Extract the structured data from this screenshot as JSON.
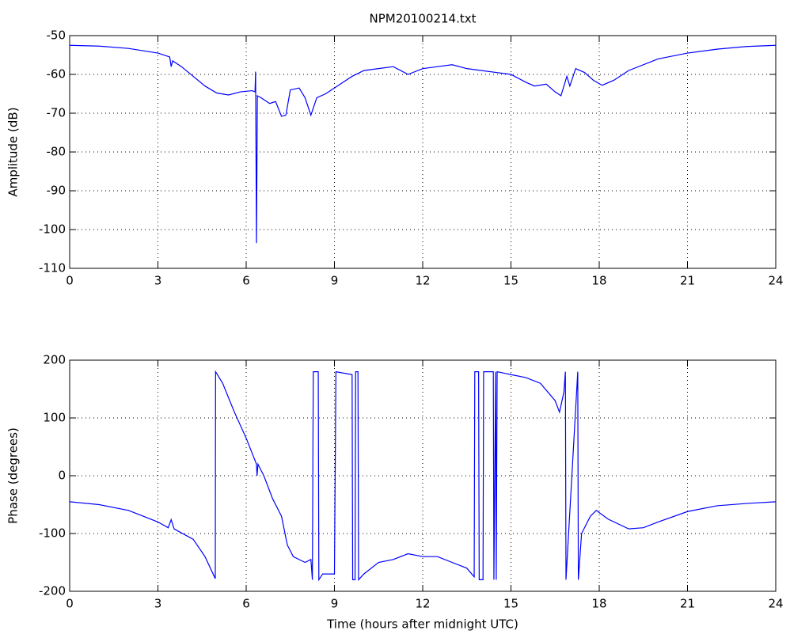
{
  "chart_data": [
    {
      "type": "line",
      "title": "NPM20100214.txt",
      "y_label": "Amplitude (dB)",
      "color": "#0000ff",
      "grid": true,
      "x": [
        0,
        1,
        2,
        3,
        3.4,
        3.45,
        3.5,
        3.8,
        4.2,
        4.6,
        5,
        5.4,
        5.8,
        6.2,
        6.3,
        6.32,
        6.35,
        6.38,
        6.5,
        6.8,
        7,
        7.2,
        7.35,
        7.5,
        7.8,
        8,
        8.2,
        8.4,
        8.7,
        9,
        9.3,
        9.6,
        10,
        10.5,
        11,
        11.5,
        12,
        12.5,
        13,
        13.5,
        14,
        14.5,
        15,
        15.5,
        15.8,
        16.2,
        16.5,
        16.7,
        16.9,
        17,
        17.2,
        17.5,
        17.8,
        18.1,
        18.5,
        19,
        20,
        21,
        22,
        23,
        24
      ],
      "values": [
        -52.5,
        -52.7,
        -53.3,
        -54.5,
        -55.5,
        -58,
        -56.5,
        -58,
        -60.5,
        -63,
        -64.8,
        -65.3,
        -64.5,
        -64.2,
        -64.5,
        -59.3,
        -103.5,
        -65.5,
        -66,
        -67.5,
        -67,
        -70.8,
        -70.5,
        -64,
        -63.5,
        -66,
        -70.5,
        -66,
        -65,
        -63.5,
        -62,
        -60.5,
        -59,
        -58.5,
        -58,
        -60,
        -58.5,
        -58,
        -57.5,
        -58.5,
        -59,
        -59.5,
        -60,
        -62,
        -63,
        -62.5,
        -64.5,
        -65.5,
        -60.5,
        -63,
        -58.5,
        -59.5,
        -61.5,
        -62.8,
        -61.5,
        -59,
        -56,
        -54.5,
        -53.5,
        -52.8,
        -52.5
      ],
      "xlim": [
        0,
        24
      ],
      "xticks": [
        0,
        3,
        6,
        9,
        12,
        15,
        18,
        21,
        24
      ],
      "ylim": [
        -110,
        -50
      ],
      "yticks": [
        -110,
        -100,
        -90,
        -80,
        -70,
        -60,
        -50
      ]
    },
    {
      "type": "line",
      "x_label": "Time (hours after midnight UTC)",
      "y_label": "Phase (degrees)",
      "color": "#0000ff",
      "grid": true,
      "x": [
        0,
        1,
        2,
        3,
        3.35,
        3.45,
        3.55,
        4.2,
        4.6,
        4.95,
        4.96,
        5.2,
        5.6,
        6,
        6.35,
        6.37,
        6.4,
        6.6,
        6.9,
        7.2,
        7.4,
        7.6,
        8,
        8.2,
        8.25,
        8.28,
        8.45,
        8.47,
        8.6,
        9,
        9.05,
        9.6,
        9.62,
        9.7,
        9.72,
        9.8,
        9.82,
        10,
        10.5,
        11,
        11.5,
        12,
        12.5,
        13,
        13.5,
        13.75,
        13.77,
        13.9,
        13.92,
        14.05,
        14.07,
        14.4,
        14.42,
        14.48,
        14.5,
        14.53,
        15,
        15.5,
        16,
        16.5,
        16.65,
        16.8,
        16.85,
        16.87,
        17.27,
        17.29,
        17.4,
        17.7,
        17.9,
        18.3,
        19,
        19.5,
        20,
        21,
        22,
        23,
        24
      ],
      "values": [
        -45,
        -50,
        -60,
        -80,
        -90,
        -76,
        -92,
        -110,
        -140,
        -178,
        180,
        160,
        110,
        65,
        20,
        0,
        20,
        0,
        -40,
        -70,
        -120,
        -140,
        -150,
        -145,
        -180,
        180,
        180,
        -180,
        -170,
        -170,
        180,
        175,
        -180,
        -180,
        180,
        180,
        -180,
        -170,
        -150,
        -145,
        -135,
        -140,
        -140,
        -150,
        -160,
        -175,
        180,
        180,
        -180,
        -180,
        180,
        180,
        -180,
        180,
        -180,
        180,
        175,
        170,
        160,
        130,
        110,
        145,
        180,
        -180,
        180,
        -180,
        -100,
        -70,
        -60,
        -75,
        -92,
        -90,
        -80,
        -62,
        -52,
        -48,
        -45
      ],
      "xlim": [
        0,
        24
      ],
      "xticks": [
        0,
        3,
        6,
        9,
        12,
        15,
        18,
        21,
        24
      ],
      "ylim": [
        -200,
        200
      ],
      "yticks": [
        -200,
        -100,
        0,
        100,
        200
      ]
    }
  ]
}
